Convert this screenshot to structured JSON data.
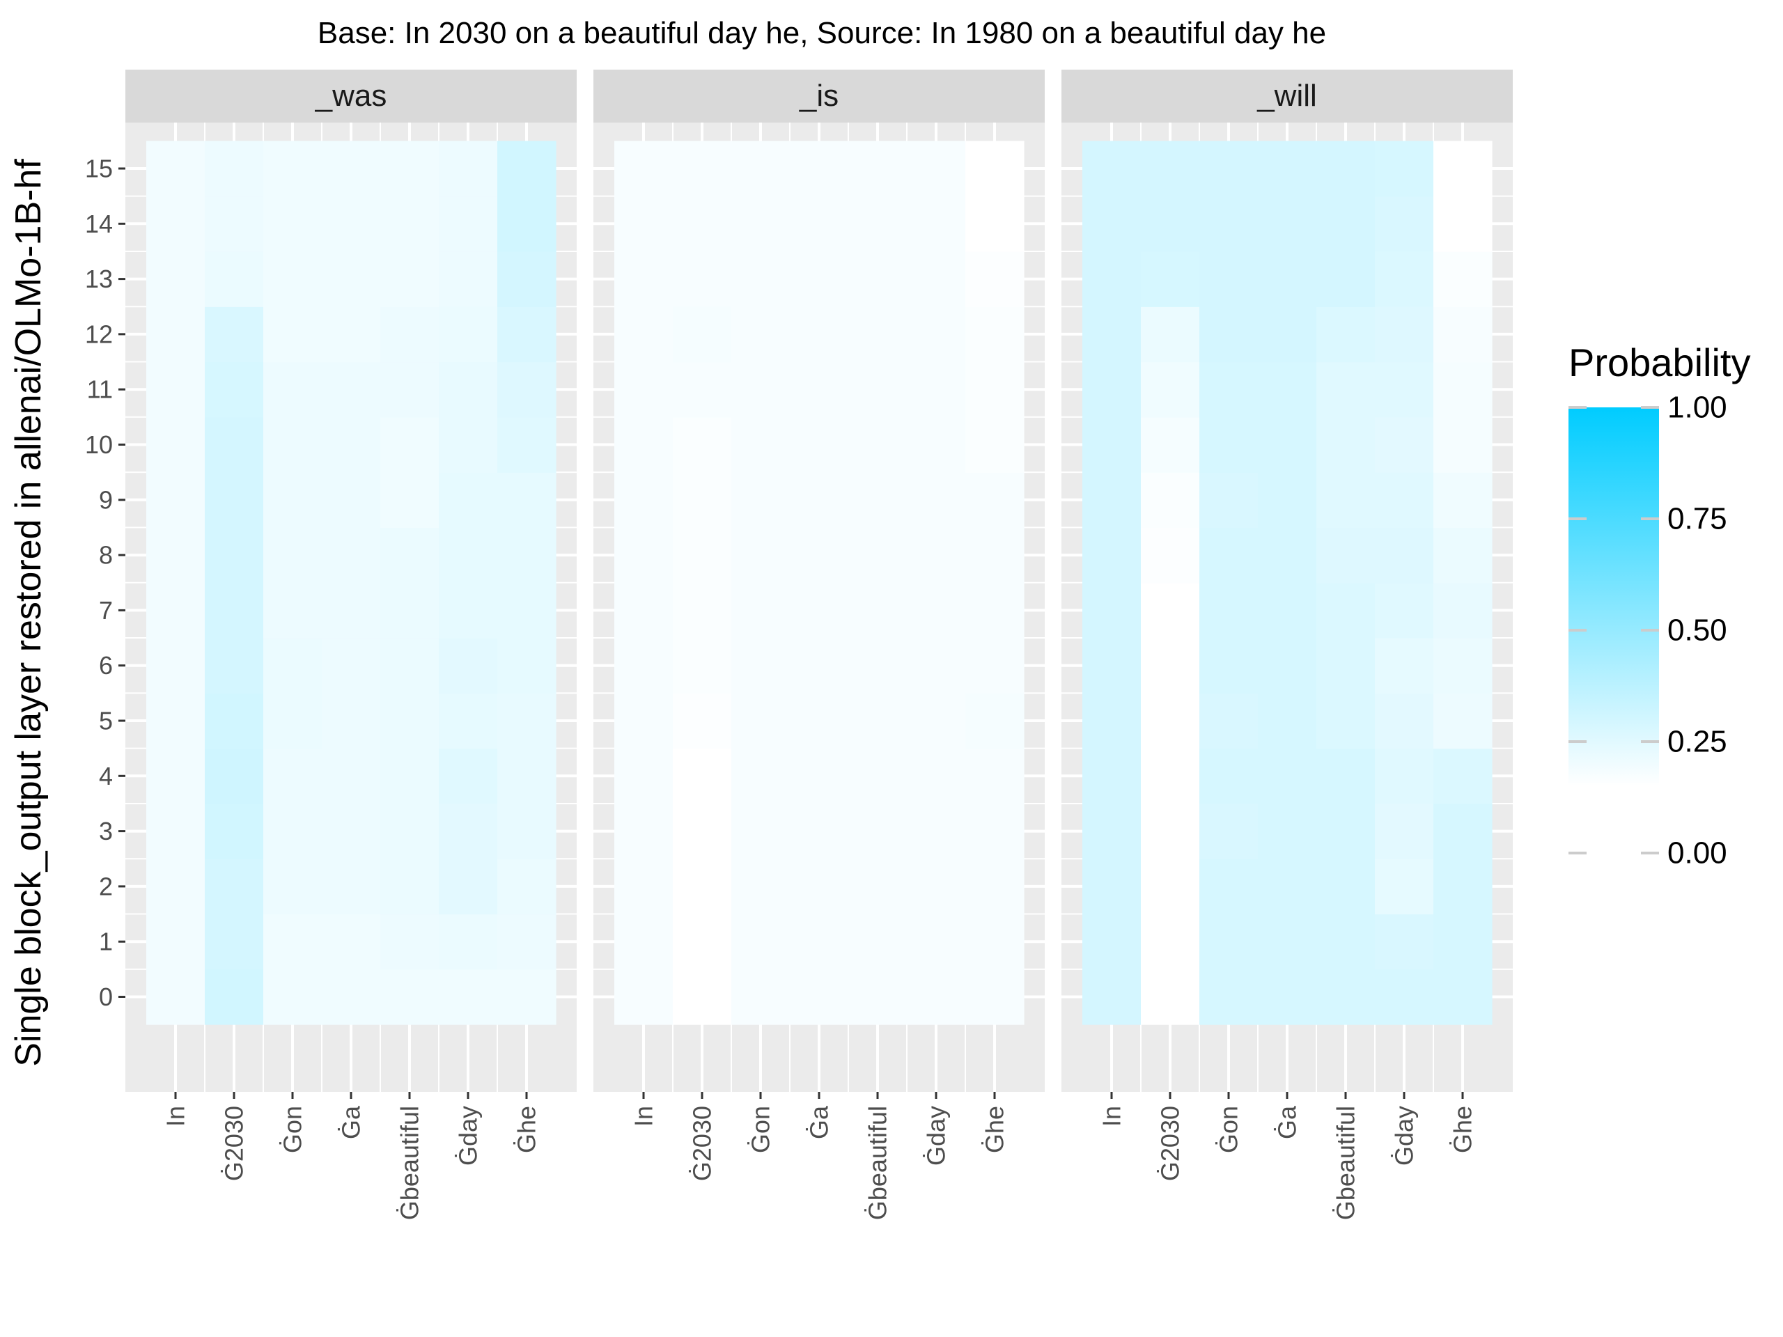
{
  "chart_data": {
    "type": "heatmap",
    "title": "Base: In 2030 on a beautiful day he, Source: In 1980 on a beautiful day he",
    "ylabel": "Single block_output layer restored in allenai/OLMo-1B-hf",
    "xlabel": "",
    "tokens": [
      "In",
      "Ġ2030",
      "Ġon",
      "Ġa",
      "Ġbeautiful",
      "Ġday",
      "Ġhe"
    ],
    "layers": [
      0,
      1,
      2,
      3,
      4,
      5,
      6,
      7,
      8,
      9,
      10,
      11,
      12,
      13,
      14,
      15
    ],
    "color_scale": {
      "low": "#ffffff",
      "high": "#00ccff",
      "min": 0,
      "max": 1
    },
    "legend": {
      "title": "Probability",
      "ticks": [
        "0.00",
        "0.25",
        "0.50",
        "0.75",
        "1.00"
      ]
    },
    "panels": [
      {
        "name": "_was",
        "values": [
          [
            0.05,
            0.05,
            0.05,
            0.05,
            0.05,
            0.05,
            0.05,
            0.05,
            0.05,
            0.05,
            0.05,
            0.05,
            0.05,
            0.05,
            0.05,
            0.05
          ],
          [
            0.18,
            0.17,
            0.17,
            0.18,
            0.19,
            0.18,
            0.17,
            0.17,
            0.17,
            0.17,
            0.17,
            0.16,
            0.15,
            0.08,
            0.07,
            0.07
          ],
          [
            0.06,
            0.06,
            0.07,
            0.07,
            0.07,
            0.08,
            0.08,
            0.07,
            0.07,
            0.07,
            0.07,
            0.07,
            0.06,
            0.06,
            0.06,
            0.06
          ],
          [
            0.06,
            0.06,
            0.07,
            0.07,
            0.07,
            0.07,
            0.07,
            0.07,
            0.07,
            0.07,
            0.07,
            0.07,
            0.06,
            0.06,
            0.06,
            0.06
          ],
          [
            0.06,
            0.07,
            0.08,
            0.08,
            0.08,
            0.08,
            0.08,
            0.08,
            0.08,
            0.06,
            0.06,
            0.07,
            0.07,
            0.06,
            0.06,
            0.06
          ],
          [
            0.06,
            0.08,
            0.11,
            0.11,
            0.12,
            0.1,
            0.11,
            0.1,
            0.1,
            0.1,
            0.09,
            0.09,
            0.08,
            0.07,
            0.07,
            0.07
          ],
          [
            0.06,
            0.07,
            0.08,
            0.09,
            0.09,
            0.09,
            0.1,
            0.1,
            0.1,
            0.1,
            0.12,
            0.13,
            0.15,
            0.17,
            0.18,
            0.18
          ]
        ]
      },
      {
        "name": "_is",
        "values": [
          [
            0.03,
            0.03,
            0.03,
            0.03,
            0.03,
            0.03,
            0.03,
            0.03,
            0.03,
            0.03,
            0.03,
            0.03,
            0.03,
            0.03,
            0.03,
            0.03
          ],
          [
            0.0,
            0.0,
            0.0,
            0.0,
            0.0,
            0.01,
            0.02,
            0.02,
            0.02,
            0.02,
            0.02,
            0.03,
            0.04,
            0.03,
            0.03,
            0.03
          ],
          [
            0.03,
            0.03,
            0.03,
            0.03,
            0.03,
            0.03,
            0.03,
            0.03,
            0.03,
            0.03,
            0.03,
            0.03,
            0.03,
            0.03,
            0.03,
            0.03
          ],
          [
            0.03,
            0.03,
            0.03,
            0.03,
            0.03,
            0.03,
            0.03,
            0.03,
            0.03,
            0.03,
            0.03,
            0.03,
            0.03,
            0.03,
            0.03,
            0.03
          ],
          [
            0.03,
            0.03,
            0.03,
            0.03,
            0.03,
            0.03,
            0.03,
            0.03,
            0.03,
            0.03,
            0.03,
            0.03,
            0.03,
            0.03,
            0.03,
            0.03
          ],
          [
            0.03,
            0.03,
            0.03,
            0.03,
            0.03,
            0.03,
            0.03,
            0.03,
            0.03,
            0.03,
            0.03,
            0.03,
            0.03,
            0.03,
            0.03,
            0.03
          ],
          [
            0.03,
            0.03,
            0.03,
            0.03,
            0.03,
            0.04,
            0.03,
            0.03,
            0.03,
            0.03,
            0.02,
            0.02,
            0.02,
            0.01,
            0.0,
            0.0
          ]
        ]
      },
      {
        "name": "_will",
        "values": [
          [
            0.17,
            0.17,
            0.17,
            0.17,
            0.17,
            0.17,
            0.17,
            0.17,
            0.17,
            0.17,
            0.17,
            0.17,
            0.17,
            0.17,
            0.17,
            0.17
          ],
          [
            0.0,
            0.0,
            0.0,
            0.0,
            0.0,
            0.0,
            0.0,
            0.0,
            0.01,
            0.02,
            0.04,
            0.06,
            0.08,
            0.16,
            0.17,
            0.17
          ],
          [
            0.16,
            0.16,
            0.16,
            0.15,
            0.16,
            0.15,
            0.16,
            0.16,
            0.16,
            0.15,
            0.16,
            0.16,
            0.17,
            0.17,
            0.17,
            0.17
          ],
          [
            0.16,
            0.16,
            0.16,
            0.16,
            0.16,
            0.16,
            0.16,
            0.16,
            0.16,
            0.16,
            0.16,
            0.16,
            0.17,
            0.17,
            0.17,
            0.17
          ],
          [
            0.16,
            0.16,
            0.16,
            0.16,
            0.16,
            0.14,
            0.14,
            0.14,
            0.13,
            0.12,
            0.12,
            0.12,
            0.14,
            0.17,
            0.17,
            0.17
          ],
          [
            0.16,
            0.15,
            0.1,
            0.11,
            0.12,
            0.11,
            0.1,
            0.12,
            0.13,
            0.12,
            0.11,
            0.12,
            0.13,
            0.14,
            0.15,
            0.16
          ],
          [
            0.16,
            0.16,
            0.16,
            0.16,
            0.14,
            0.07,
            0.08,
            0.09,
            0.08,
            0.06,
            0.04,
            0.04,
            0.03,
            0.02,
            0.0,
            0.0
          ]
        ]
      }
    ]
  }
}
